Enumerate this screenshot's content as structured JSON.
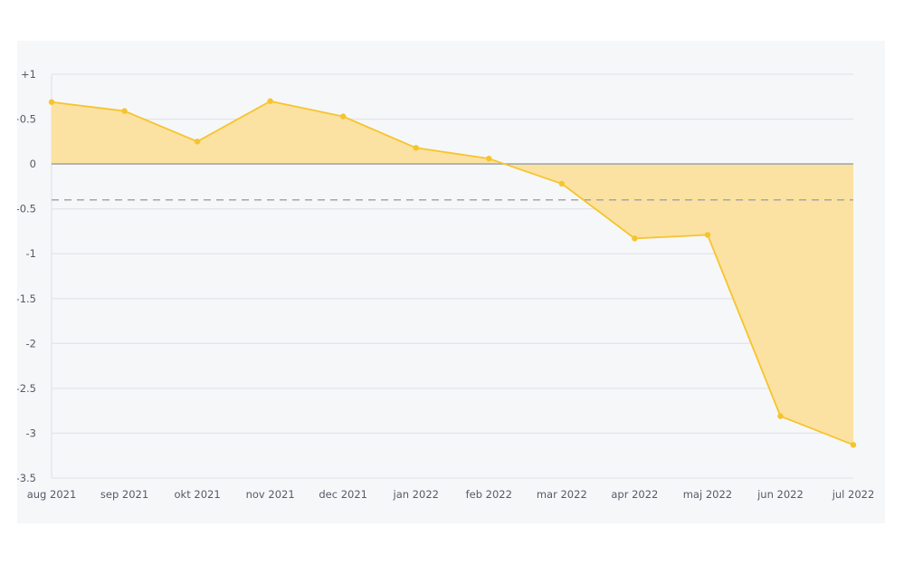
{
  "chart_data": {
    "type": "area",
    "title": "",
    "xlabel": "",
    "ylabel": "",
    "categories": [
      "aug 2021",
      "sep 2021",
      "okt 2021",
      "nov 2021",
      "dec 2021",
      "jan 2022",
      "feb 2022",
      "mar 2022",
      "apr 2022",
      "maj 2022",
      "jun 2022",
      "jul 2022"
    ],
    "series": [
      {
        "values": [
          0.69,
          0.59,
          0.25,
          0.7,
          0.53,
          0.18,
          0.06,
          -0.22,
          -0.83,
          -0.79,
          -2.81,
          -3.13
        ]
      }
    ],
    "y_ticks": [
      "+1",
      "+0.5",
      "0",
      "-0.5",
      "-1",
      "-1.5",
      "-2",
      "-2.5",
      "-3",
      "-3.5"
    ],
    "y_tick_values": [
      1,
      0.5,
      0,
      -0.5,
      -1,
      -1.5,
      -2,
      -2.5,
      -3,
      -3.5
    ],
    "ylim": [
      -3.5,
      1
    ],
    "reference_line": -0.4,
    "grid": true,
    "legend": "none",
    "colors": {
      "line": "#f6c42c",
      "fill": "#fbe2a2",
      "grid": "#e3e5ea",
      "zero_line": "#a5a7ab",
      "reference_line": "#a5a7ab"
    }
  }
}
